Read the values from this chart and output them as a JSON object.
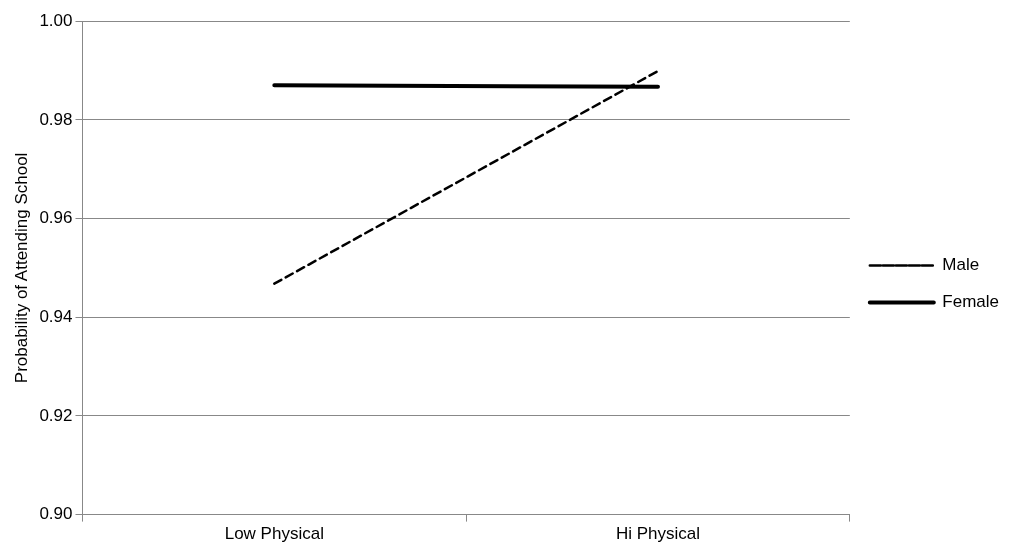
{
  "chart_data": {
    "type": "line",
    "ylabel": "Probability of Attending School",
    "categories": [
      "Low Physical",
      "Hi Physical"
    ],
    "series": [
      {
        "name": "Male",
        "color": "#000000",
        "values": [
          0.9468,
          0.9899
        ],
        "line_style": "dashed"
      },
      {
        "name": "Female",
        "color": "#000000",
        "values": [
          0.987,
          0.9867
        ],
        "line_style": "solid"
      }
    ],
    "ylim": [
      0.9,
      1.0
    ],
    "yticks": [
      {
        "value": 0.9,
        "label": "0.90"
      },
      {
        "value": 0.92,
        "label": "0.92"
      },
      {
        "value": 0.94,
        "label": "0.94"
      },
      {
        "value": 0.96,
        "label": "0.96"
      },
      {
        "value": 0.98,
        "label": "0.98"
      },
      {
        "value": 1.0,
        "label": "1.00"
      }
    ],
    "grid": "y",
    "legend": "right",
    "marker": "none"
  }
}
